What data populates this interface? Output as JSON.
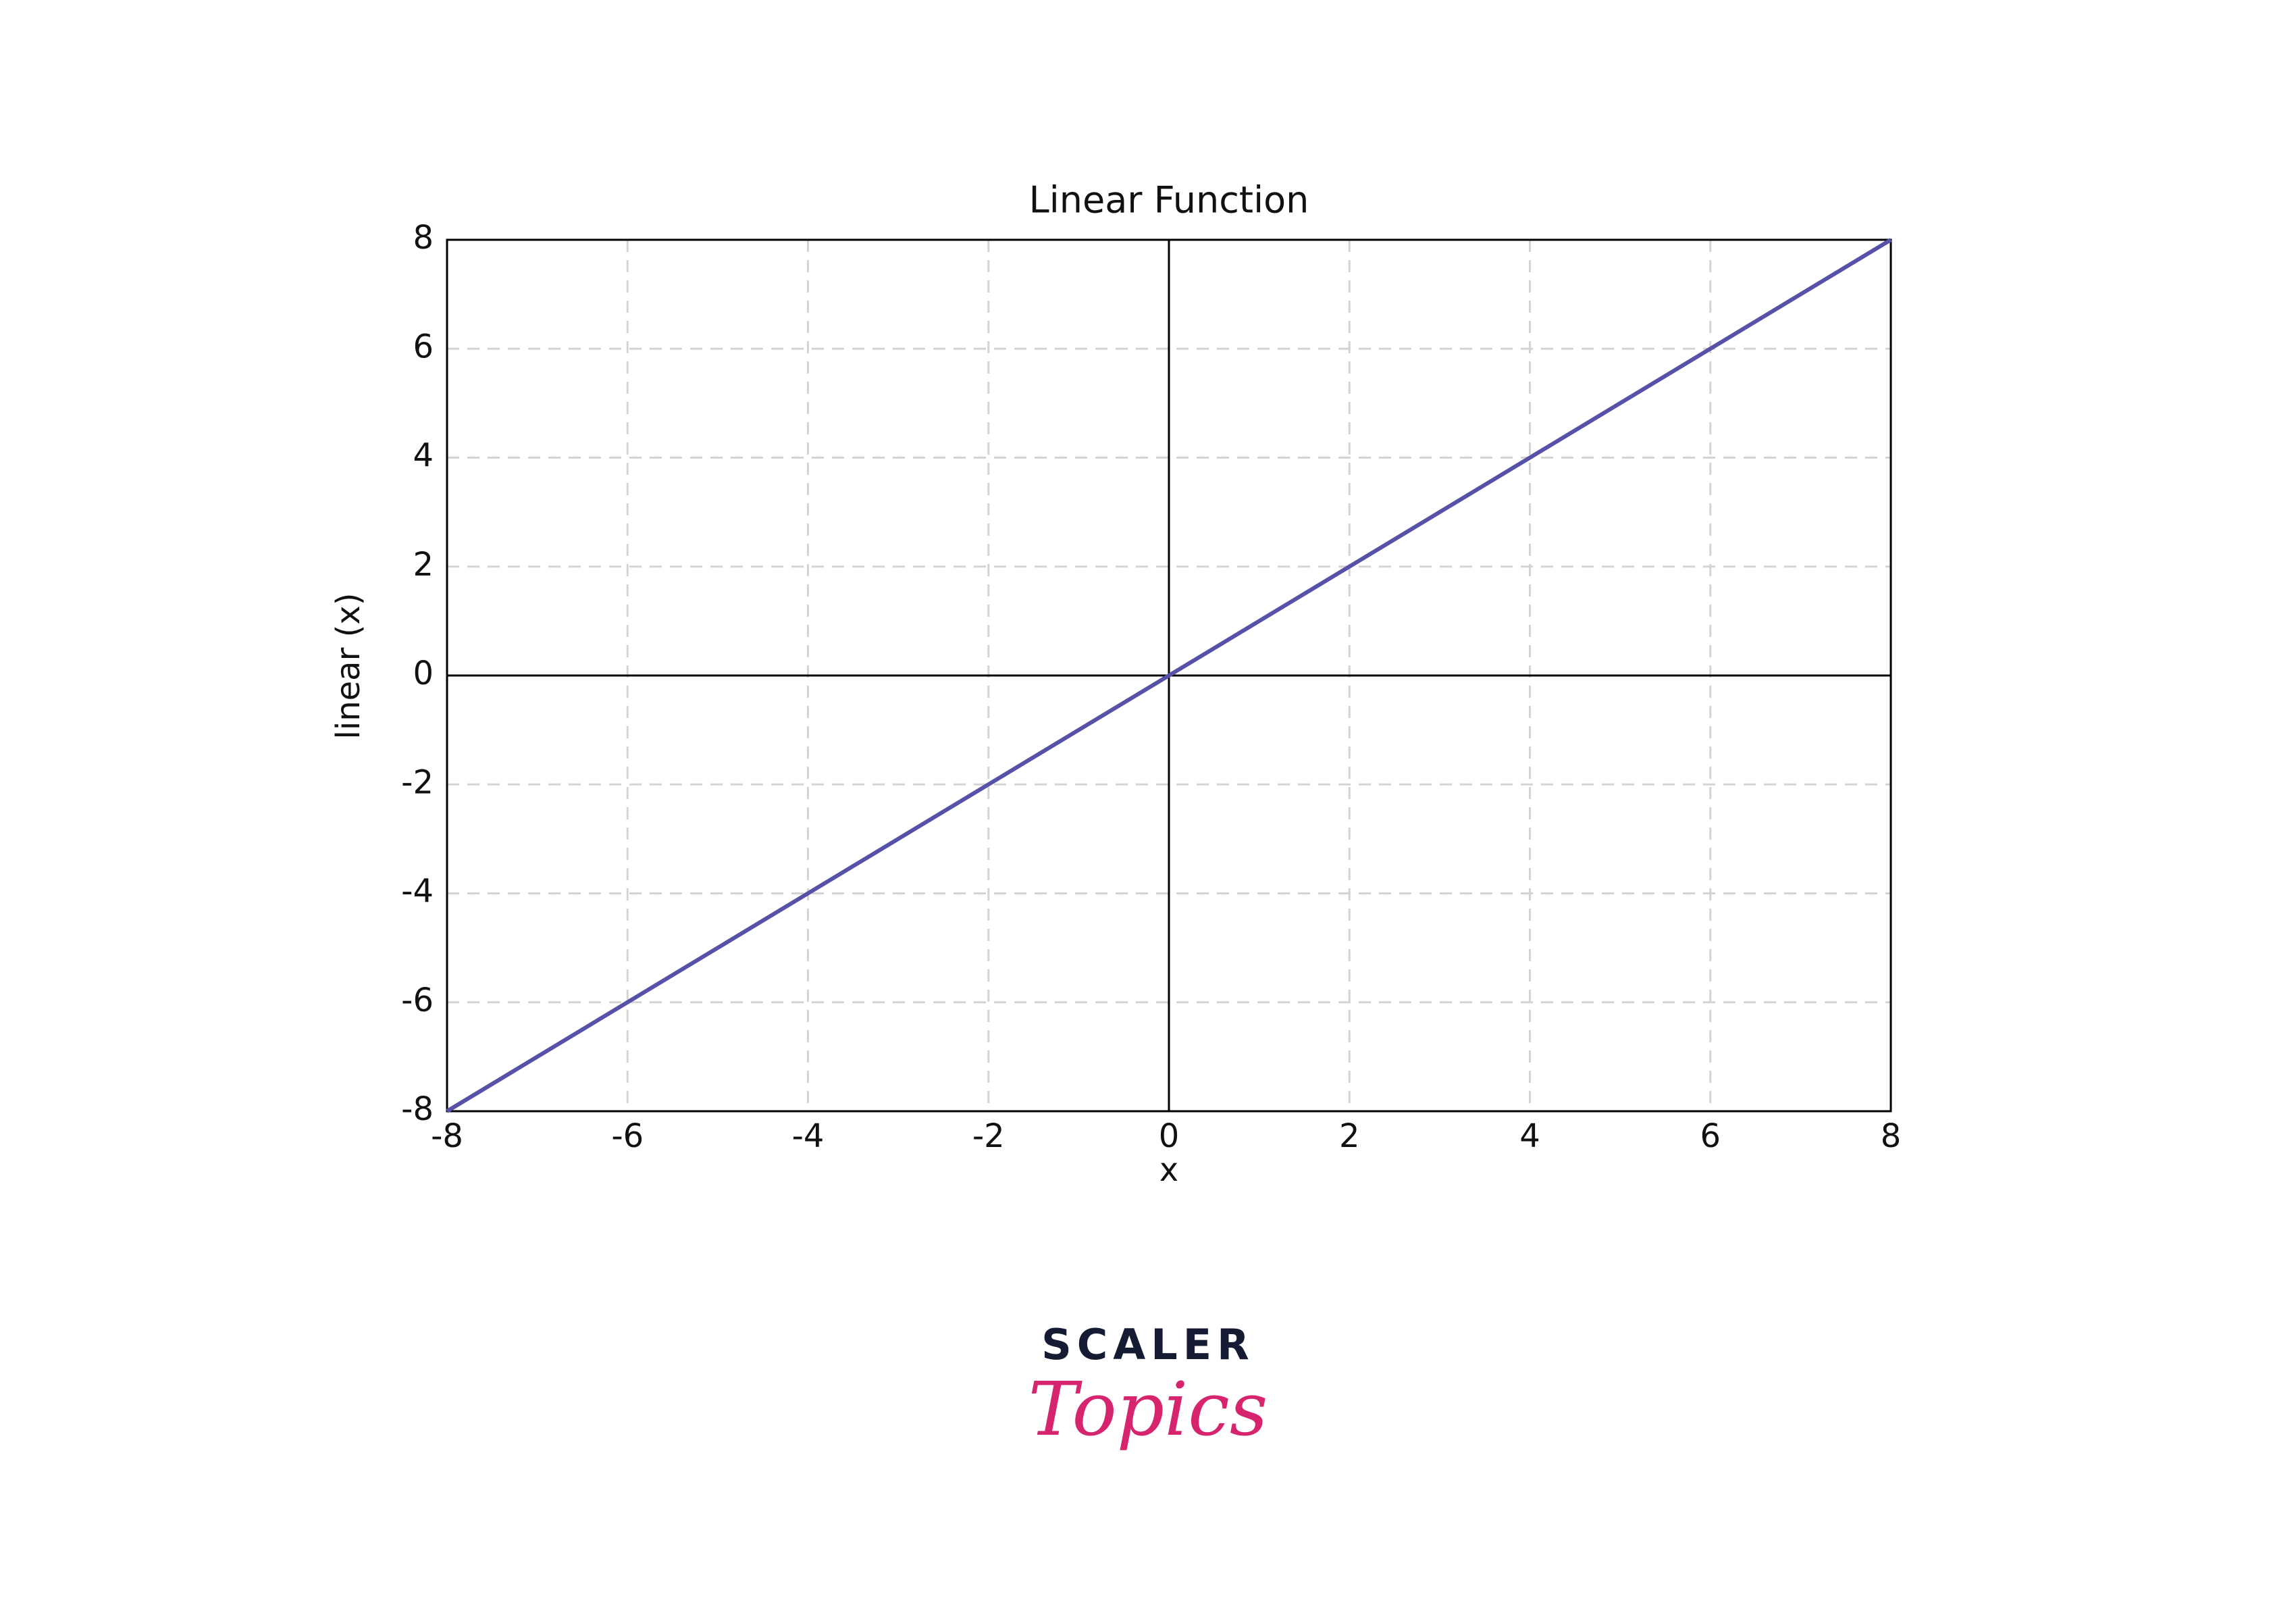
{
  "chart_data": {
    "type": "line",
    "title": "Linear Function",
    "xlabel": "x",
    "ylabel": "linear (x)",
    "x": [
      -8,
      8
    ],
    "values": [
      -8,
      8
    ],
    "color": "#5652a8",
    "xlim": [
      -8,
      8
    ],
    "ylim": [
      -8,
      8
    ],
    "xticks": [
      -8,
      -6,
      -4,
      -2,
      0,
      2,
      4,
      6,
      8
    ],
    "yticks": [
      -8,
      -6,
      -4,
      -2,
      0,
      2,
      4,
      6,
      8
    ],
    "grid": true,
    "zero_lines": true
  },
  "logo": {
    "top": "SCALER",
    "bottom": "Topics"
  }
}
